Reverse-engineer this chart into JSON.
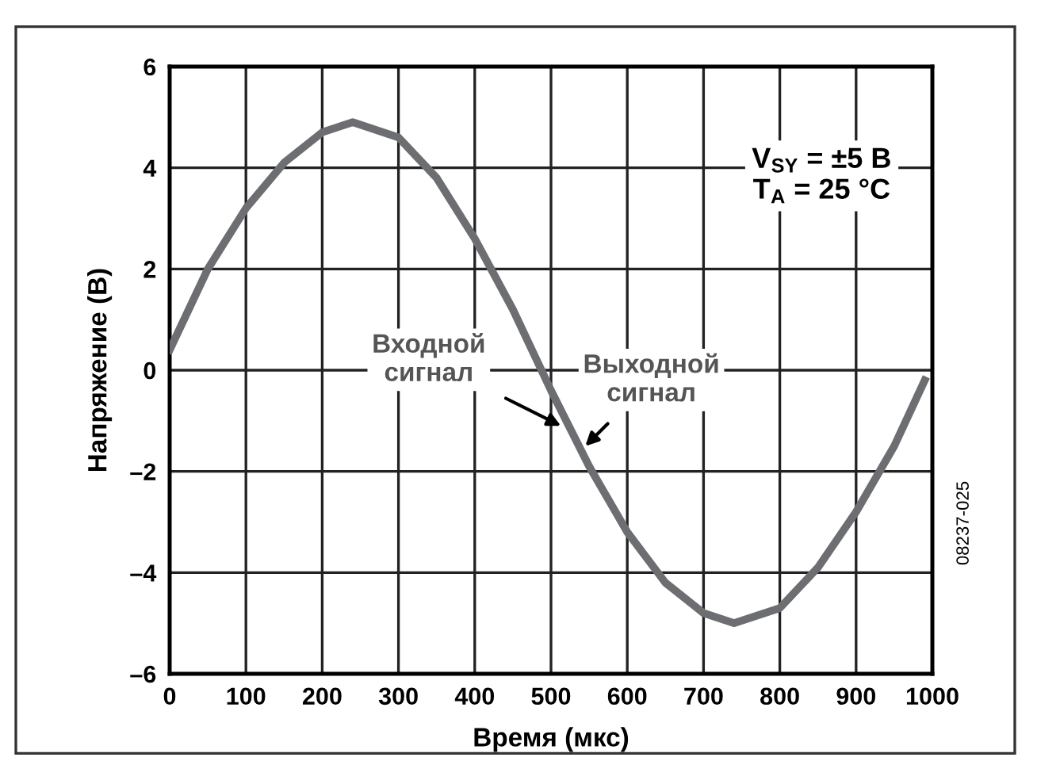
{
  "chart_data": {
    "type": "line",
    "xlabel": "Время (мкс)",
    "ylabel": "Напряжение (В)",
    "x": [
      0,
      50,
      100,
      150,
      200,
      240,
      300,
      350,
      400,
      450,
      500,
      550,
      600,
      650,
      700,
      740,
      800,
      850,
      900,
      950,
      990
    ],
    "series": [
      {
        "color": "#6d6e71",
        "values": [
          0.4,
          2.0,
          3.2,
          4.1,
          4.7,
          4.9,
          4.6,
          3.8,
          2.6,
          1.2,
          -0.4,
          -1.9,
          -3.2,
          -4.2,
          -4.8,
          -5.0,
          -4.7,
          -3.9,
          -2.8,
          -1.5,
          -0.2
        ]
      }
    ],
    "xlim": [
      0,
      1000
    ],
    "xticks": [
      0,
      100,
      200,
      300,
      400,
      500,
      600,
      700,
      800,
      900,
      1000
    ],
    "ylim": [
      -6,
      6
    ],
    "yticks": [
      {
        "value": -6,
        "label": "–6"
      },
      {
        "value": -4,
        "label": "–4"
      },
      {
        "value": -2,
        "label": "–2"
      },
      0,
      2,
      4,
      6
    ],
    "grid": true,
    "marker": "none",
    "line_style": "solid",
    "annotations": [
      "V$_{SY}$ = ±5 В\nT$_{A}$ = 25 °C",
      {
        "text": "Входной\nсигнал",
        "x": 513,
        "y": -1.1
      },
      {
        "text": "Выходной\nсигнал",
        "x": 545,
        "y": -1.5
      },
      "08237-025"
    ]
  }
}
